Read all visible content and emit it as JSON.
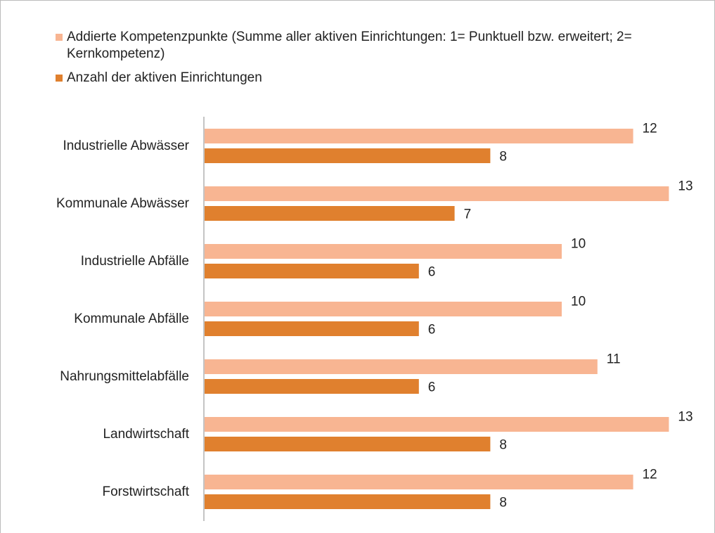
{
  "chart_data": {
    "type": "barh",
    "categories": [
      "Industrielle Abwässer",
      "Kommunale Abwässer",
      "Industrielle Abfälle",
      "Kommunale Abfälle",
      "Nahrungsmittelabfälle",
      "Landwirtschaft",
      "Forstwirtschaft"
    ],
    "series": [
      {
        "name": "Addierte Kompetenzpunkte (Summe aller aktiven Einrichtungen: 1= Punktuell bzw. erweitert; 2= Kernkompetenz)",
        "color": "#f8b592",
        "values": [
          12,
          13,
          10,
          10,
          11,
          13,
          12
        ]
      },
      {
        "name": "Anzahl der aktiven Einrichtungen",
        "color": "#e0802e",
        "values": [
          8,
          7,
          6,
          6,
          6,
          8,
          8
        ]
      }
    ],
    "legend": "top"
  }
}
